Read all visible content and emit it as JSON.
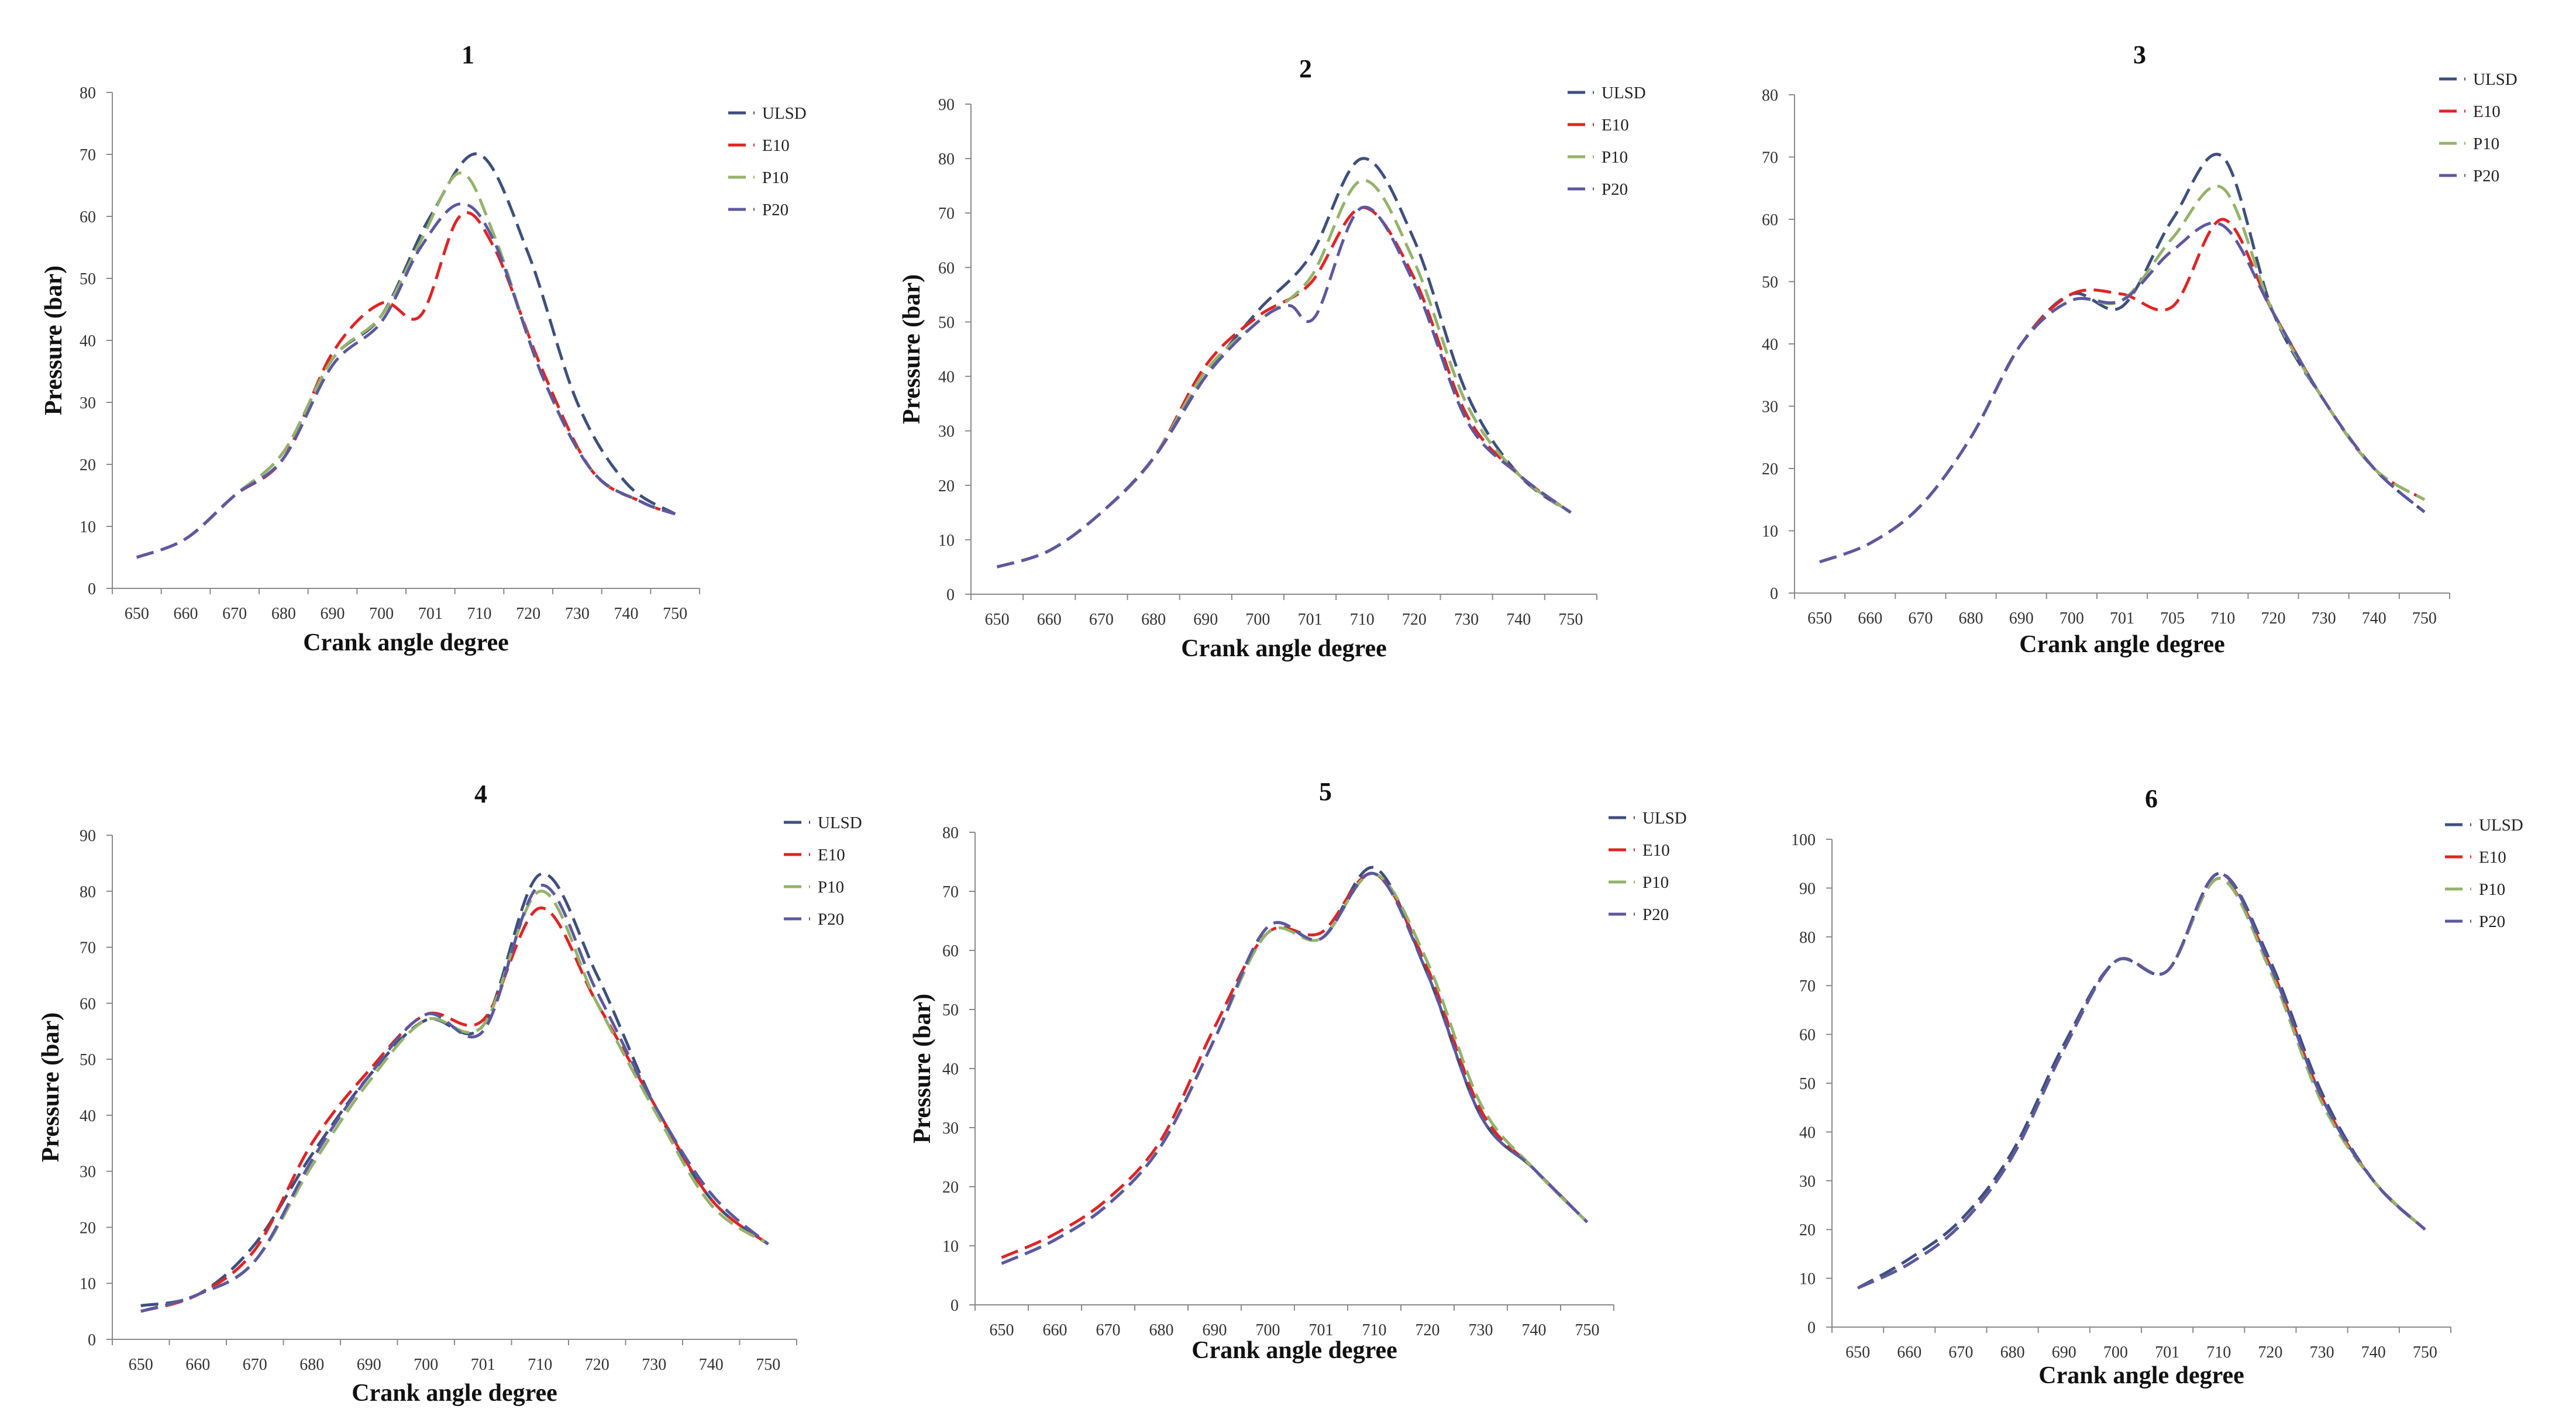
{
  "chart_data": [
    {
      "type": "line",
      "title": "1",
      "xlabel": "Crank angle degree",
      "ylabel": "Pressure (bar)",
      "categories": [
        "650",
        "660",
        "670",
        "680",
        "690",
        "700",
        "701",
        "710",
        "720",
        "730",
        "740",
        "750"
      ],
      "ylim": [
        0,
        80
      ],
      "yticks": [
        0,
        10,
        20,
        30,
        40,
        50,
        60,
        70,
        80
      ],
      "legend_position": "top-right",
      "series": [
        {
          "name": "ULSD",
          "x": [
            0,
            1,
            2,
            3,
            4,
            5,
            6,
            7,
            8,
            9,
            10,
            11,
            12
          ],
          "values": [
            5,
            8,
            15,
            22,
            37,
            44,
            60,
            70,
            54,
            30,
            17,
            12,
            null
          ]
        },
        {
          "name": "E10",
          "x": [
            0,
            1,
            2,
            3,
            4,
            5,
            5.8,
            6.6,
            7.3,
            8.3,
            9.3,
            10.3,
            11
          ],
          "values": [
            5,
            8,
            15,
            21,
            38,
            46,
            44,
            60,
            55,
            35,
            19,
            14,
            12
          ]
        },
        {
          "name": "P10",
          "x": [
            0,
            1,
            2,
            3,
            4,
            5,
            5.8,
            6.6,
            7.3,
            8.3,
            9.3,
            10.3,
            11
          ],
          "values": [
            5,
            8,
            15,
            22,
            37,
            44,
            56,
            67,
            57,
            34,
            19,
            14,
            12
          ]
        },
        {
          "name": "P20",
          "x": [
            0,
            1,
            2,
            3,
            4,
            5,
            5.8,
            6.6,
            7.3,
            8.3,
            9.3,
            10.3,
            11
          ],
          "values": [
            5,
            8,
            15,
            21,
            36,
            43,
            55,
            62,
            56,
            34,
            19,
            14,
            12
          ]
        }
      ]
    },
    {
      "type": "line",
      "title": "2",
      "xlabel": "Crank angle degree",
      "ylabel": "Pressure (bar)",
      "categories": [
        "650",
        "660",
        "670",
        "680",
        "690",
        "700",
        "701",
        "710",
        "720",
        "730",
        "740",
        "750"
      ],
      "ylim": [
        0,
        90
      ],
      "yticks": [
        0,
        10,
        20,
        30,
        40,
        50,
        60,
        70,
        80,
        90
      ],
      "legend_position": "top-right",
      "series": [
        {
          "name": "ULSD",
          "x": [
            0,
            1,
            2,
            3,
            4,
            5,
            6,
            7,
            8,
            9,
            10,
            11
          ],
          "values": [
            5,
            8,
            15,
            25,
            40,
            52,
            62,
            80,
            65,
            37,
            22,
            15
          ]
        },
        {
          "name": "E10",
          "x": [
            0,
            1,
            2,
            3,
            4,
            5,
            6,
            7,
            8,
            9,
            10,
            11
          ],
          "values": [
            5,
            8,
            15,
            25,
            42,
            51,
            57,
            71,
            58,
            33,
            22,
            15
          ]
        },
        {
          "name": "P10",
          "x": [
            0,
            1,
            2,
            3,
            4,
            5,
            6,
            7,
            8,
            9,
            10,
            11
          ],
          "values": [
            5,
            8,
            15,
            25,
            41,
            50,
            58,
            76,
            61,
            35,
            22,
            15
          ]
        },
        {
          "name": "P20",
          "x": [
            0,
            1,
            2,
            3,
            4,
            5,
            5.6,
            6.1,
            7,
            8,
            9,
            10,
            11
          ],
          "values": [
            5,
            8,
            15,
            25,
            40,
            50,
            53,
            51,
            71,
            57,
            32,
            22,
            15
          ]
        }
      ]
    },
    {
      "type": "line",
      "title": "3",
      "xlabel": "Crank angle degree",
      "ylabel": "",
      "categories": [
        "650",
        "660",
        "670",
        "680",
        "690",
        "700",
        "701",
        "705",
        "710",
        "720",
        "730",
        "740",
        "750"
      ],
      "ylim": [
        0,
        80
      ],
      "yticks": [
        0,
        10,
        20,
        30,
        40,
        50,
        60,
        70,
        80
      ],
      "legend_position": "top-right",
      "series": [
        {
          "name": "ULSD",
          "x": [
            0,
            1,
            2,
            3,
            4,
            5,
            6,
            7,
            8,
            9,
            10,
            11,
            12
          ],
          "values": [
            5,
            8,
            14,
            25,
            40,
            48,
            46,
            60,
            70,
            45,
            31,
            20,
            13
          ]
        },
        {
          "name": "E10",
          "x": [
            0,
            1,
            2,
            3,
            4,
            5,
            6,
            7,
            8,
            9,
            10,
            11,
            12
          ],
          "values": [
            5,
            8,
            14,
            25,
            40,
            48,
            48,
            46,
            60,
            45,
            31,
            20,
            15
          ]
        },
        {
          "name": "P10",
          "x": [
            0,
            1,
            2,
            3,
            4,
            5,
            6,
            7,
            8,
            9,
            10,
            11,
            12
          ],
          "values": [
            5,
            8,
            14,
            25,
            40,
            47,
            47,
            57,
            65,
            45,
            31,
            20,
            15
          ]
        },
        {
          "name": "P20",
          "x": [
            0,
            1,
            2,
            3,
            4,
            5,
            6,
            7,
            8,
            9,
            10,
            11,
            12
          ],
          "values": [
            5,
            8,
            14,
            25,
            40,
            47,
            47,
            55,
            59,
            45,
            31,
            20,
            13
          ]
        }
      ]
    },
    {
      "type": "line",
      "title": "4",
      "xlabel": "Crank angle degree",
      "ylabel": "Pressure (bar)",
      "categories": [
        "650",
        "660",
        "670",
        "680",
        "690",
        "700",
        "701",
        "710",
        "720",
        "730",
        "740",
        "750"
      ],
      "ylim": [
        0,
        90
      ],
      "yticks": [
        0,
        10,
        20,
        30,
        40,
        50,
        60,
        70,
        80,
        90
      ],
      "legend_position": "top-right",
      "series": [
        {
          "name": "ULSD",
          "x": [
            0,
            1,
            2,
            3,
            4,
            5,
            6,
            7,
            8,
            9,
            10,
            11
          ],
          "values": [
            6,
            8,
            17,
            33,
            47,
            57,
            56,
            83,
            65,
            42,
            25,
            17
          ]
        },
        {
          "name": "E10",
          "x": [
            0,
            1,
            2,
            3,
            4,
            5,
            6,
            7,
            8,
            9,
            10,
            11
          ],
          "values": [
            5,
            8,
            16,
            35,
            48,
            58,
            57,
            77,
            60,
            42,
            25,
            17
          ]
        },
        {
          "name": "P10",
          "x": [
            0,
            1,
            2,
            3,
            4,
            5,
            6,
            7,
            8,
            9,
            10,
            11
          ],
          "values": [
            5,
            8,
            14,
            31,
            46,
            57,
            56,
            80,
            60,
            41,
            24,
            17
          ]
        },
        {
          "name": "P20",
          "x": [
            0,
            1,
            2,
            3,
            4,
            5,
            6,
            7,
            8,
            9,
            10,
            11
          ],
          "values": [
            5,
            8,
            14,
            32,
            47,
            58,
            55,
            81,
            62,
            42,
            26,
            17
          ]
        }
      ]
    },
    {
      "type": "line",
      "title": "5",
      "xlabel": "Crank angle degree",
      "ylabel": "Pressure (bar)",
      "categories": [
        "650",
        "660",
        "670",
        "680",
        "690",
        "700",
        "701",
        "710",
        "720",
        "730",
        "740",
        "750"
      ],
      "ylim": [
        0,
        80
      ],
      "yticks": [
        0,
        10,
        20,
        30,
        40,
        50,
        60,
        70,
        80
      ],
      "legend_position": "top-right",
      "series": [
        {
          "name": "ULSD",
          "x": [
            0,
            1,
            2,
            3,
            4,
            5,
            6,
            7,
            8,
            9,
            10,
            11
          ],
          "values": [
            7,
            11,
            17,
            27,
            45,
            64,
            62,
            74,
            56,
            32,
            23,
            14
          ]
        },
        {
          "name": "E10",
          "x": [
            0,
            1,
            2,
            3,
            4,
            5,
            6,
            7,
            8,
            9,
            10,
            11
          ],
          "values": [
            8,
            12,
            18,
            28,
            47,
            63,
            63,
            73,
            57,
            33,
            23,
            14
          ]
        },
        {
          "name": "P10",
          "x": [
            0,
            1,
            2,
            3,
            4,
            5,
            6,
            7,
            8,
            9,
            10,
            11
          ],
          "values": [
            7,
            11,
            17,
            27,
            45,
            63,
            62,
            73,
            58,
            34,
            23,
            14
          ]
        },
        {
          "name": "P20",
          "x": [
            0,
            1,
            2,
            3,
            4,
            5,
            6,
            7,
            8,
            9,
            10,
            11
          ],
          "values": [
            7,
            11,
            17,
            27,
            45,
            64,
            62,
            73,
            56,
            32,
            23,
            14
          ]
        }
      ]
    },
    {
      "type": "line",
      "title": "6",
      "xlabel": "Crank angle degree",
      "ylabel": "",
      "categories": [
        "650",
        "660",
        "670",
        "680",
        "690",
        "700",
        "701",
        "710",
        "720",
        "730",
        "740",
        "750"
      ],
      "ylim": [
        0,
        100
      ],
      "yticks": [
        0,
        10,
        20,
        30,
        40,
        50,
        60,
        70,
        80,
        90,
        100
      ],
      "legend_position": "top-right",
      "series": [
        {
          "name": "ULSD",
          "x": [
            0,
            1,
            2,
            3,
            4,
            5,
            6,
            7,
            8,
            9,
            10,
            11
          ],
          "values": [
            8,
            14,
            22,
            36,
            58,
            75,
            73,
            93,
            75,
            48,
            30,
            20
          ]
        },
        {
          "name": "E10",
          "x": [
            0,
            1,
            2,
            3,
            4,
            5,
            6,
            7,
            8,
            9,
            10,
            11
          ],
          "values": [
            8,
            13,
            21,
            35,
            57,
            75,
            73,
            92,
            74,
            47,
            30,
            20
          ]
        },
        {
          "name": "P10",
          "x": [
            0,
            1,
            2,
            3,
            4,
            5,
            6,
            7,
            8,
            9,
            10,
            11
          ],
          "values": [
            8,
            13,
            21,
            35,
            57,
            75,
            73,
            92,
            73,
            46,
            30,
            20
          ]
        },
        {
          "name": "P20",
          "x": [
            0,
            1,
            2,
            3,
            4,
            5,
            6,
            7,
            8,
            9,
            10,
            11
          ],
          "values": [
            8,
            13,
            21,
            35,
            57,
            75,
            73,
            93,
            74,
            47,
            30,
            20
          ]
        }
      ]
    }
  ],
  "colors": {
    "ULSD": "#3d4f7c",
    "E10": "#e02424",
    "P10": "#93b36a",
    "P20": "#5c58a0"
  }
}
